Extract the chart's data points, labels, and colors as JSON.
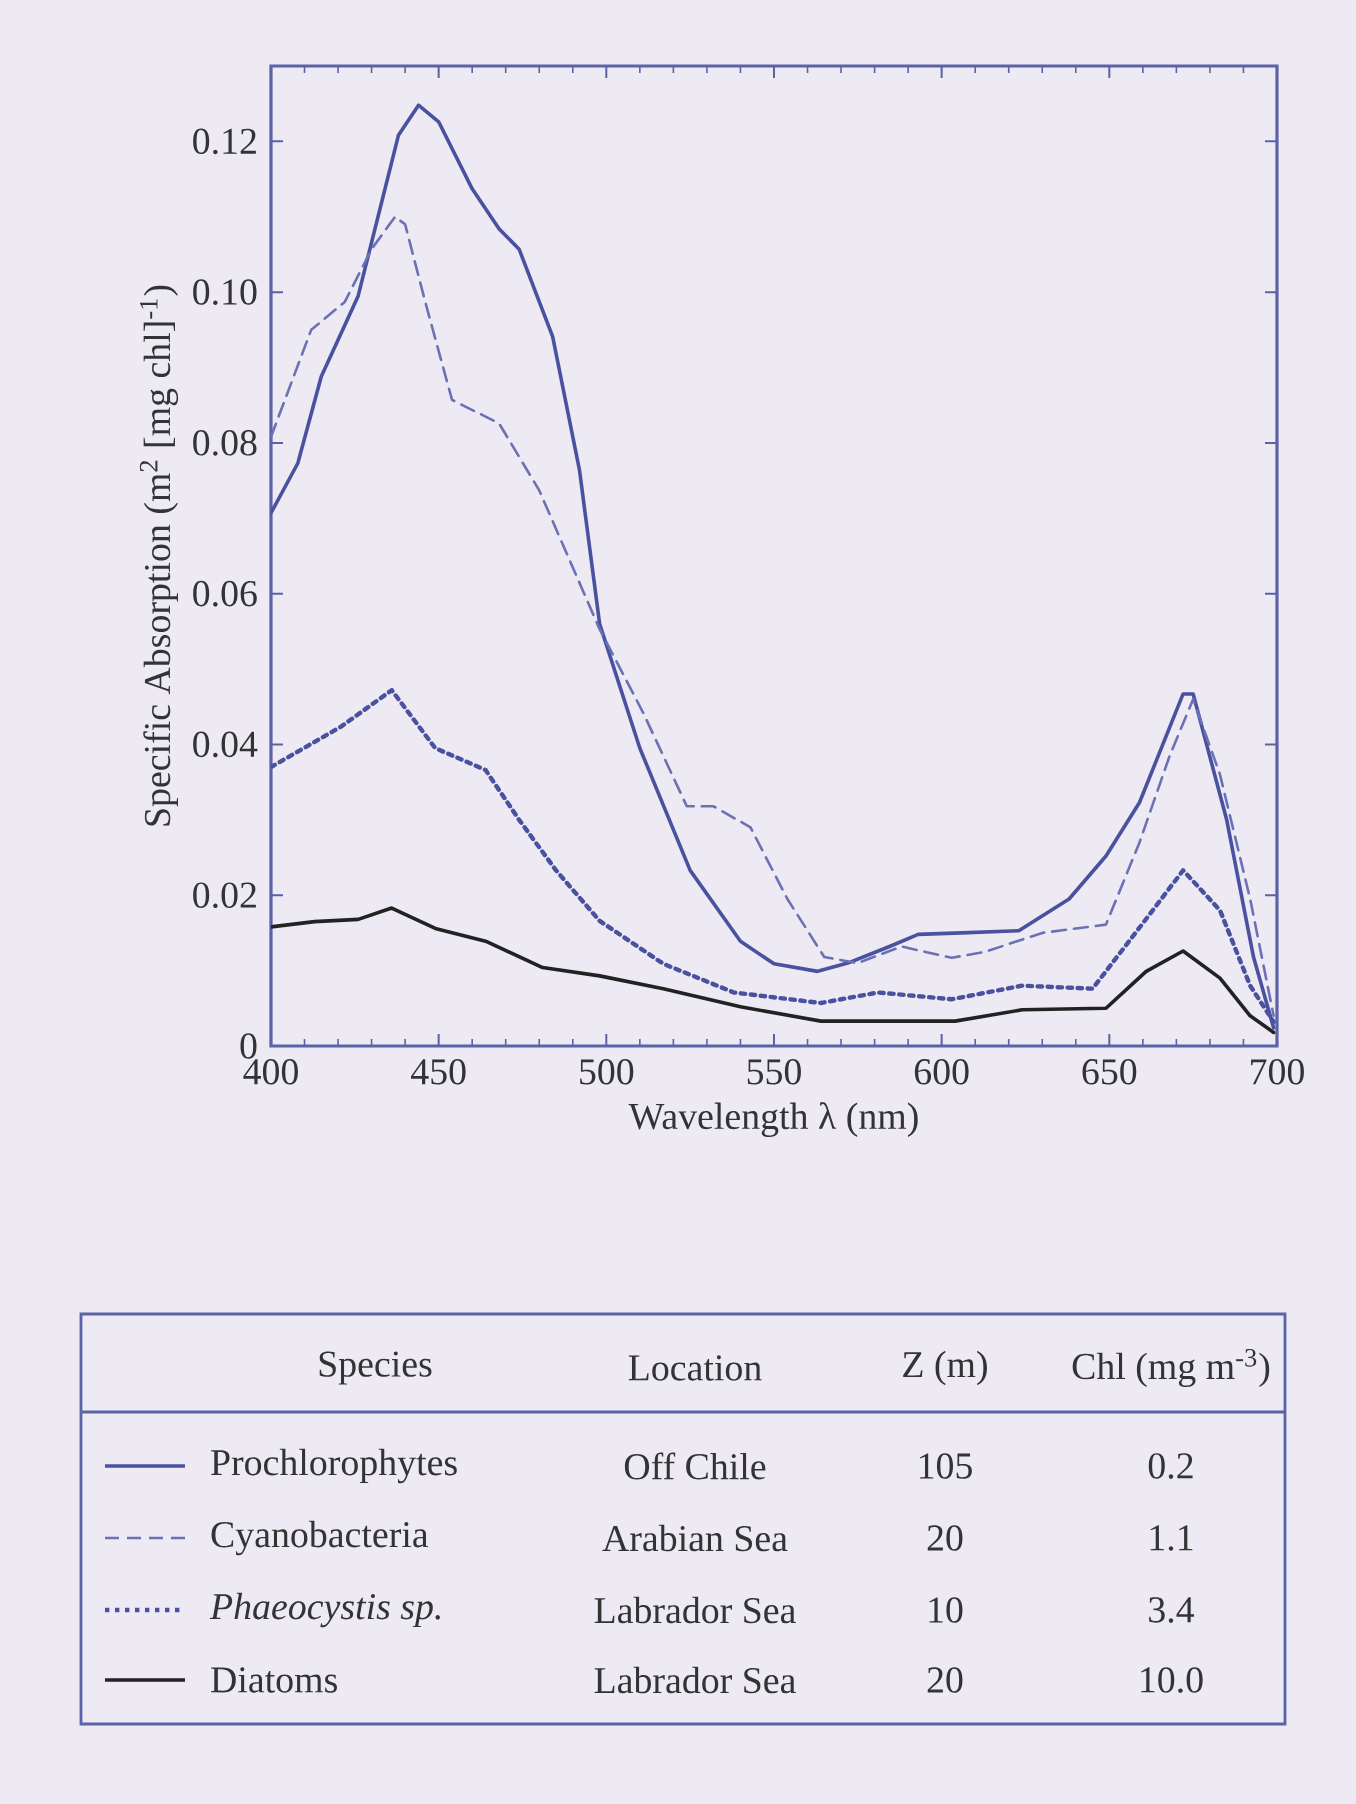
{
  "chart_data": {
    "type": "line",
    "xlabel": "Wavelength λ (nm)",
    "ylabel": "Specific Absorption (m$^{2}$ [mg chl]$^{-1}$)",
    "xlim": [
      400,
      700
    ],
    "ylim": [
      0,
      0.13
    ],
    "xticks": [
      400,
      450,
      500,
      550,
      600,
      650,
      700
    ],
    "yticks": [
      0,
      0.02,
      0.04,
      0.06,
      0.08,
      {
        "value": 0.1,
        "label": "0.10"
      },
      0.12
    ],
    "legend": "bottom",
    "legend_title": "Species",
    "series": [
      {
        "name": "Prochlorophytes",
        "color": "#4a52a0",
        "line_style": "solid",
        "x": [
          400,
          408,
          415,
          426,
          438,
          444,
          450,
          460,
          468,
          474,
          484,
          492,
          498,
          510,
          525,
          540,
          550,
          563,
          572,
          585,
          593,
          606,
          623,
          638,
          649,
          659,
          672,
          675,
          685,
          693,
          699
        ],
        "values": [
          0.0707,
          0.0773,
          0.0888,
          0.0995,
          0.1208,
          0.1248,
          0.1226,
          0.1137,
          0.1084,
          0.1057,
          0.0941,
          0.0764,
          0.056,
          0.0395,
          0.0233,
          0.0139,
          0.0109,
          0.0099,
          0.011,
          0.0133,
          0.0148,
          0.015,
          0.0153,
          0.0195,
          0.0252,
          0.0323,
          0.0467,
          0.0467,
          0.03,
          0.0118,
          0.0024
        ]
      },
      {
        "name": "Cyanobacteria",
        "color": "#6a72b5",
        "line_style": "dashed",
        "x": [
          400,
          412,
          422,
          430,
          437,
          440,
          446,
          454,
          468,
          480,
          498,
          511,
          524,
          532,
          543,
          554,
          565,
          575,
          588,
          603,
          613,
          630,
          649,
          659,
          668,
          675,
          683,
          692,
          699
        ],
        "values": [
          0.0808,
          0.095,
          0.0987,
          0.1057,
          0.11,
          0.109,
          0.0987,
          0.0857,
          0.0826,
          0.0737,
          0.0553,
          0.0442,
          0.0318,
          0.0318,
          0.029,
          0.0195,
          0.0118,
          0.011,
          0.0132,
          0.0117,
          0.0125,
          0.015,
          0.0161,
          0.027,
          0.0385,
          0.046,
          0.036,
          0.0195,
          0.004
        ]
      },
      {
        "name": "Phaeocystis sp.",
        "color": "#4a52a0",
        "line_style": "dotted",
        "x": [
          400,
          421,
          436,
          449,
          464,
          474,
          485,
          498,
          517,
          538,
          564,
          581,
          603,
          624,
          645,
          659,
          672,
          683,
          692,
          699
        ],
        "values": [
          0.037,
          0.0424,
          0.0472,
          0.0395,
          0.0366,
          0.03,
          0.0233,
          0.0166,
          0.0109,
          0.0071,
          0.0057,
          0.0071,
          0.0062,
          0.008,
          0.0076,
          0.0157,
          0.0233,
          0.018,
          0.008,
          0.0032
        ]
      },
      {
        "name": "Diatoms",
        "color": "#222222",
        "line_style": "solid",
        "x": [
          400,
          413,
          426,
          436,
          449,
          464,
          481,
          498,
          517,
          540,
          564,
          604,
          624,
          649,
          661,
          672,
          683,
          692,
          699
        ],
        "values": [
          0.0158,
          0.0165,
          0.0168,
          0.0183,
          0.0156,
          0.0139,
          0.0104,
          0.0093,
          0.0076,
          0.0052,
          0.0033,
          0.0033,
          0.0048,
          0.005,
          0.0099,
          0.0126,
          0.009,
          0.004,
          0.0018
        ]
      }
    ],
    "annotations": [
      "Location",
      "Z (m)",
      "Chl (mg m$^{-3}$)",
      "Off Chile",
      "105",
      "0.2",
      "Arabian Sea",
      "20",
      "1.1",
      "Labrador Sea",
      "10",
      "3.4",
      "Labrador Sea",
      "20",
      "10.0"
    ]
  }
}
